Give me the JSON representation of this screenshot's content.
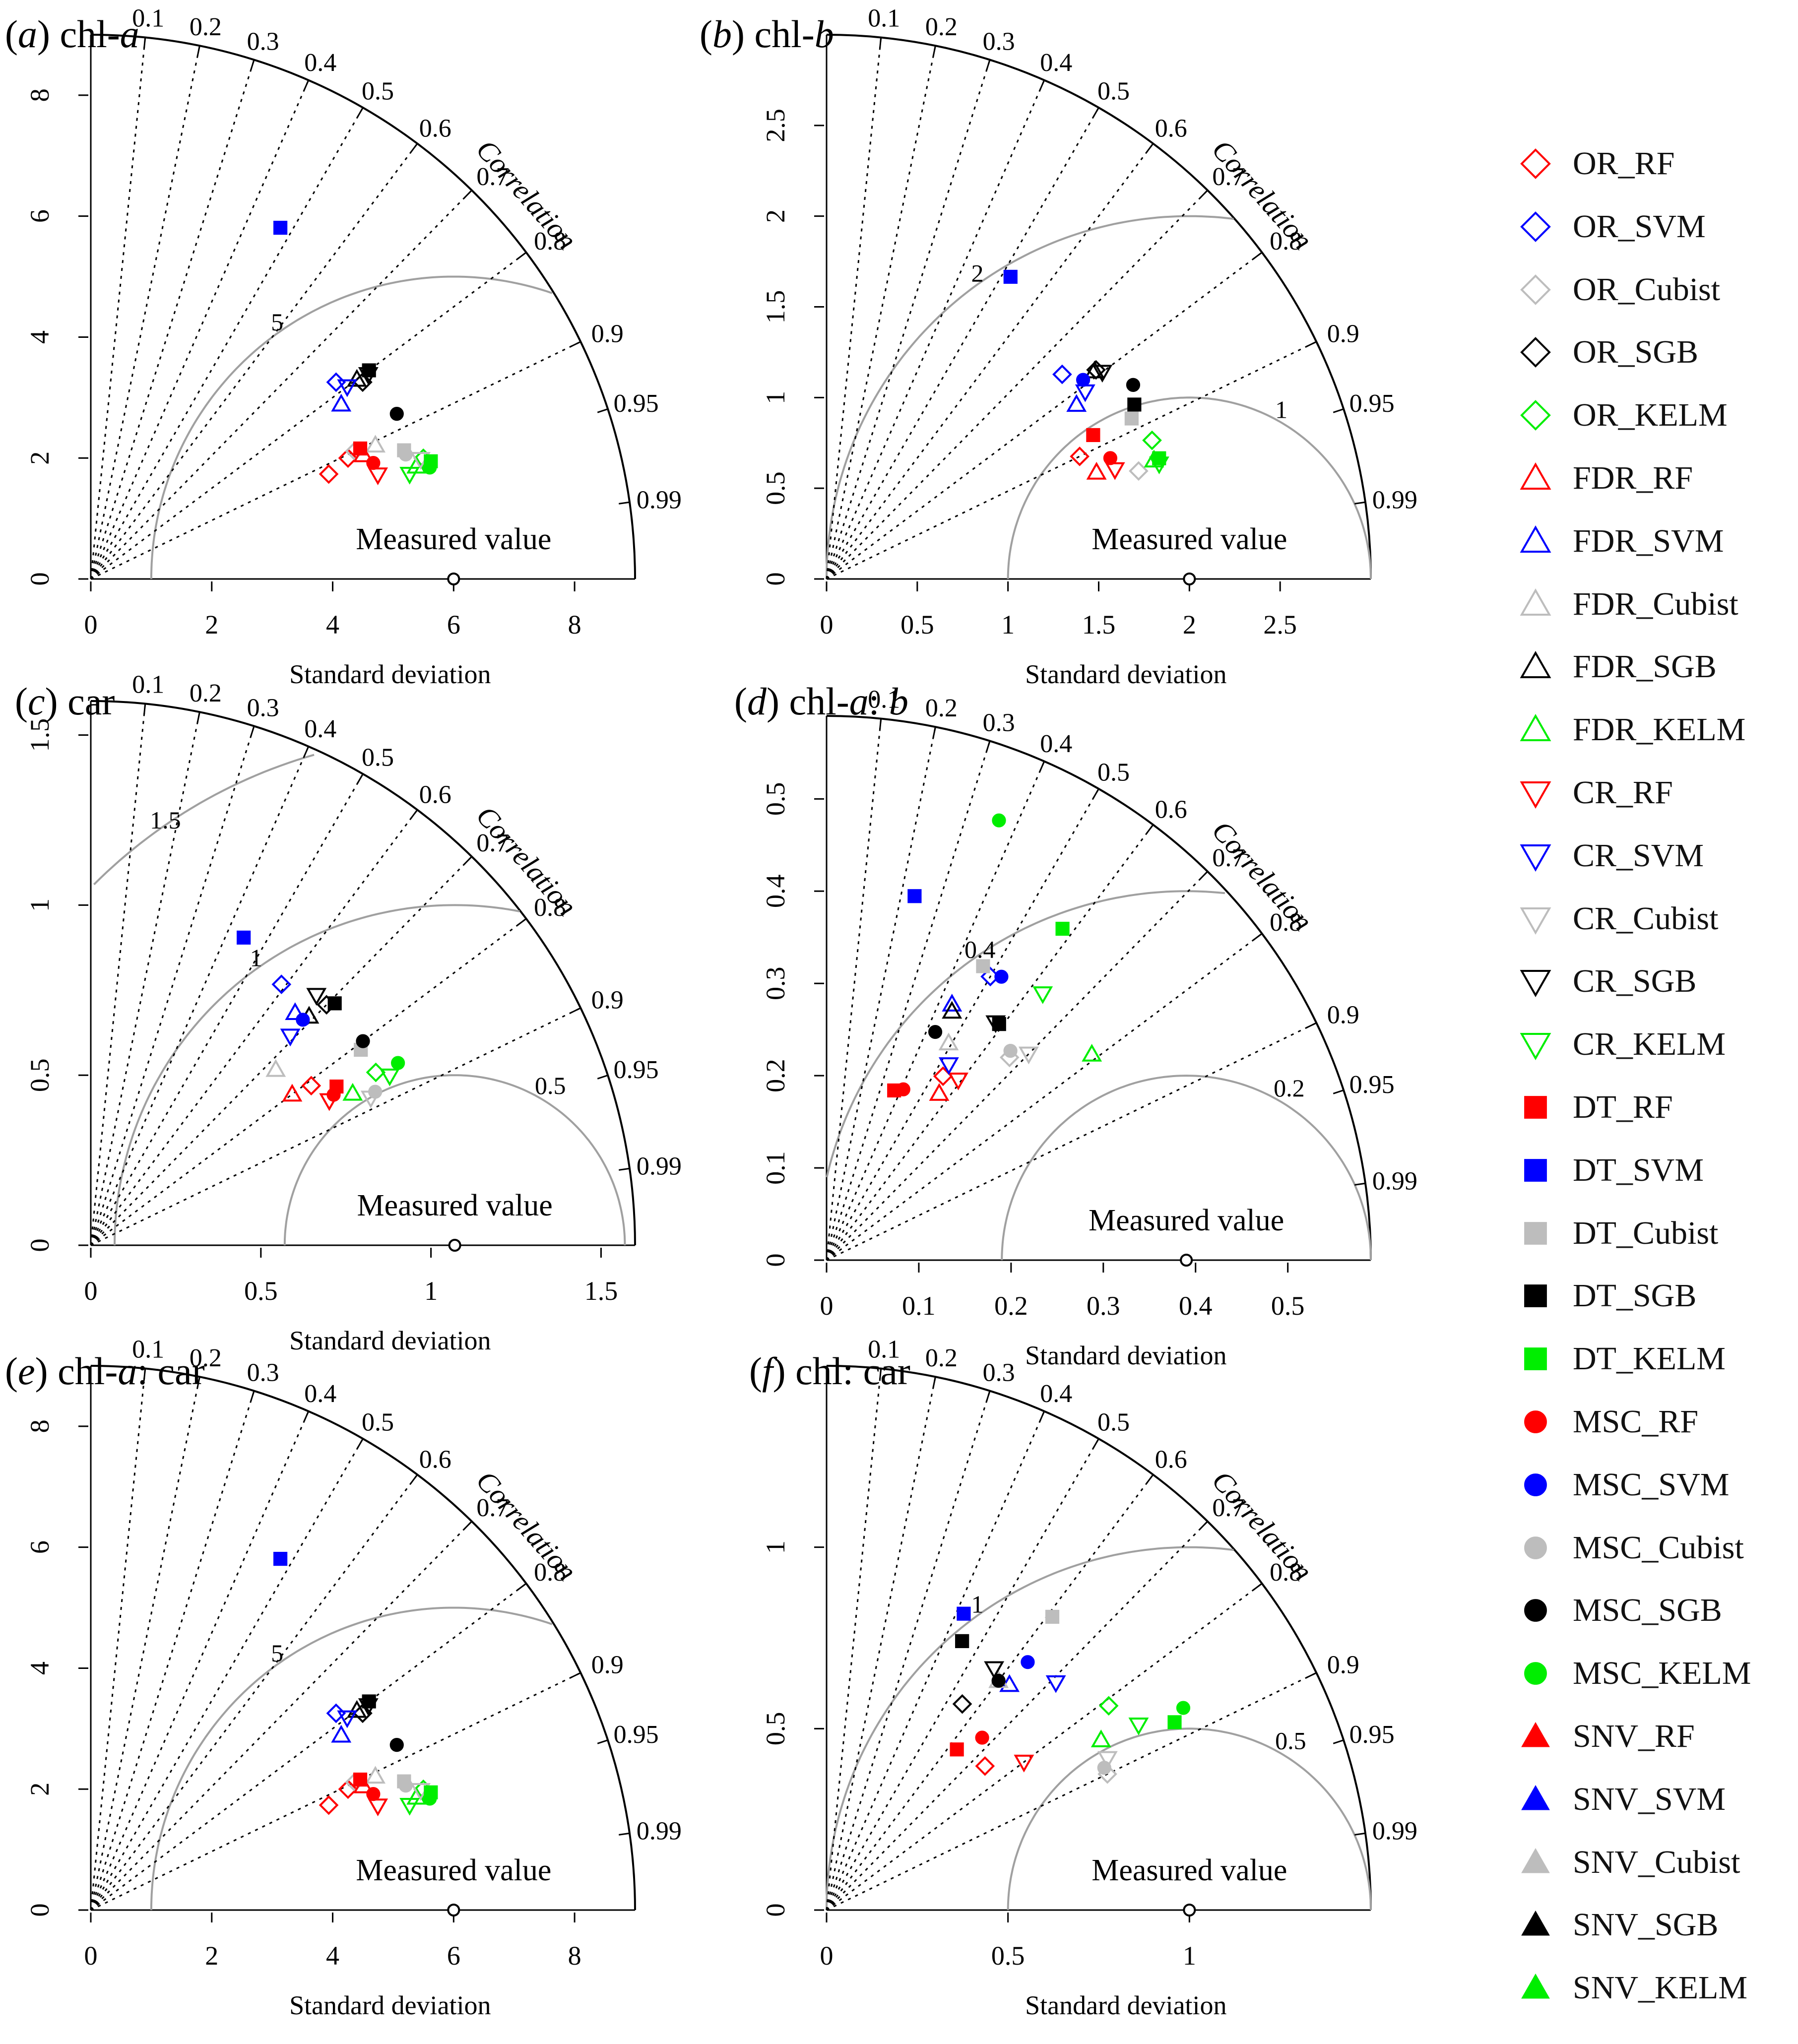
{
  "chart_data": [
    {
      "type": "taylor",
      "panel_letter": "a",
      "title_suffix": "chl-",
      "title_italic": "a",
      "rmax": 9,
      "ref_sd": 6,
      "r_ticks": [
        0,
        2,
        4,
        6,
        8
      ],
      "rmse_arcs": [
        {
          "value": 5,
          "label": "5"
        }
      ],
      "points": [
        {
          "series": "OR_RF",
          "sd": 4.3,
          "corr": 0.915
        },
        {
          "series": "OR_RF",
          "sd": 4.7,
          "corr": 0.905
        },
        {
          "series": "OR_SVM",
          "sd": 5.2,
          "corr": 0.78
        },
        {
          "series": "OR_Cubist",
          "sd": 4.85,
          "corr": 0.9
        },
        {
          "series": "OR_SGB",
          "sd": 5.55,
          "corr": 0.81
        },
        {
          "series": "OR_KELM",
          "sd": 5.85,
          "corr": 0.94
        },
        {
          "series": "FDR_RF",
          "sd": 4.95,
          "corr": 0.91
        },
        {
          "series": "FDR_SVM",
          "sd": 5.05,
          "corr": 0.82
        },
        {
          "series": "FDR_Cubist",
          "sd": 5.2,
          "corr": 0.905
        },
        {
          "series": "FDR_SGB",
          "sd": 5.5,
          "corr": 0.8
        },
        {
          "series": "FDR_KELM",
          "sd": 5.7,
          "corr": 0.945
        },
        {
          "series": "CR_RF",
          "sd": 5.05,
          "corr": 0.94
        },
        {
          "series": "CR_SVM",
          "sd": 5.3,
          "corr": 0.8
        },
        {
          "series": "CR_Cubist",
          "sd": 5.8,
          "corr": 0.94
        },
        {
          "series": "CR_SGB",
          "sd": 5.7,
          "corr": 0.805
        },
        {
          "series": "CR_KELM",
          "sd": 5.55,
          "corr": 0.95
        },
        {
          "series": "DT_RF",
          "sd": 4.95,
          "corr": 0.9
        },
        {
          "series": "DT_SVM",
          "sd": 6.6,
          "corr": 0.475
        },
        {
          "series": "DT_Cubist",
          "sd": 5.6,
          "corr": 0.925
        },
        {
          "series": "DT_SGB",
          "sd": 5.75,
          "corr": 0.8
        },
        {
          "series": "DT_KELM",
          "sd": 5.95,
          "corr": 0.945
        },
        {
          "series": "MSC_RF",
          "sd": 5.05,
          "corr": 0.925
        },
        {
          "series": "MSC_Cubist",
          "sd": 5.6,
          "corr": 0.93
        },
        {
          "series": "MSC_SGB",
          "sd": 5.75,
          "corr": 0.88
        },
        {
          "series": "MSC_KELM",
          "sd": 5.9,
          "corr": 0.95
        }
      ]
    },
    {
      "type": "taylor",
      "panel_letter": "b",
      "title_suffix": "chl-",
      "title_italic": "b",
      "rmax": 3,
      "ref_sd": 2,
      "r_ticks": [
        0.0,
        0.5,
        1.0,
        1.5,
        2.0,
        2.5
      ],
      "rmse_arcs": [
        {
          "value": 1,
          "label": "1"
        },
        {
          "value": 2,
          "label": "2"
        }
      ],
      "points": [
        {
          "series": "OR_RF",
          "sd": 1.55,
          "corr": 0.9
        },
        {
          "series": "OR_SVM",
          "sd": 1.72,
          "corr": 0.755
        },
        {
          "series": "OR_Cubist",
          "sd": 1.82,
          "corr": 0.945
        },
        {
          "series": "OR_SGB",
          "sd": 1.88,
          "corr": 0.79
        },
        {
          "series": "OR_KELM",
          "sd": 1.95,
          "corr": 0.92
        },
        {
          "series": "FDR_RF",
          "sd": 1.6,
          "corr": 0.93
        },
        {
          "series": "FDR_SVM",
          "sd": 1.68,
          "corr": 0.82
        },
        {
          "series": "FDR_SGB",
          "sd": 1.87,
          "corr": 0.79
        },
        {
          "series": "FDR_KELM",
          "sd": 1.92,
          "corr": 0.94
        },
        {
          "series": "CR_RF",
          "sd": 1.7,
          "corr": 0.935
        },
        {
          "series": "CR_SVM",
          "sd": 1.76,
          "corr": 0.81
        },
        {
          "series": "CR_SGB",
          "sd": 1.9,
          "corr": 0.8
        },
        {
          "series": "CR_KELM",
          "sd": 1.94,
          "corr": 0.945
        },
        {
          "series": "DT_RF",
          "sd": 1.67,
          "corr": 0.88
        },
        {
          "series": "DT_SVM",
          "sd": 1.95,
          "corr": 0.52
        },
        {
          "series": "DT_Cubist",
          "sd": 1.9,
          "corr": 0.885
        },
        {
          "series": "DT_SGB",
          "sd": 1.95,
          "corr": 0.87
        },
        {
          "series": "DT_KELM",
          "sd": 1.95,
          "corr": 0.94
        },
        {
          "series": "MSC_RF",
          "sd": 1.7,
          "corr": 0.92
        },
        {
          "series": "MSC_SVM",
          "sd": 1.79,
          "corr": 0.79
        },
        {
          "series": "MSC_SGB",
          "sd": 2.0,
          "corr": 0.845
        }
      ]
    },
    {
      "type": "taylor",
      "panel_letter": "c",
      "title_suffix": "car",
      "title_italic": "",
      "rmax": 1.6,
      "ref_sd": 1.07,
      "r_ticks": [
        0.0,
        0.5,
        1.0,
        1.5
      ],
      "rmse_arcs": [
        {
          "value": 0.5,
          "label": "0.5"
        },
        {
          "value": 1,
          "label": "1"
        },
        {
          "value": 1.5,
          "label": "1.5"
        }
      ],
      "points": [
        {
          "series": "OR_RF",
          "sd": 0.8,
          "corr": 0.81
        },
        {
          "series": "OR_SVM",
          "sd": 0.95,
          "corr": 0.59
        },
        {
          "series": "OR_SGB",
          "sd": 0.99,
          "corr": 0.7
        },
        {
          "series": "OR_KELM",
          "sd": 0.98,
          "corr": 0.855
        },
        {
          "series": "FDR_RF",
          "sd": 0.74,
          "corr": 0.8
        },
        {
          "series": "FDR_SVM",
          "sd": 0.91,
          "corr": 0.66
        },
        {
          "series": "FDR_Cubist",
          "sd": 0.75,
          "corr": 0.725
        },
        {
          "series": "FDR_SGB",
          "sd": 0.93,
          "corr": 0.69
        },
        {
          "series": "FDR_KELM",
          "sd": 0.89,
          "corr": 0.865
        },
        {
          "series": "CR_RF",
          "sd": 0.82,
          "corr": 0.855
        },
        {
          "series": "CR_SVM",
          "sd": 0.85,
          "corr": 0.69
        },
        {
          "series": "CR_Cubist",
          "sd": 0.93,
          "corr": 0.885
        },
        {
          "series": "CR_SGB",
          "sd": 0.99,
          "corr": 0.67
        },
        {
          "series": "CR_KELM",
          "sd": 1.01,
          "corr": 0.87
        },
        {
          "series": "DT_RF",
          "sd": 0.86,
          "corr": 0.84
        },
        {
          "series": "DT_SVM",
          "sd": 1.01,
          "corr": 0.445
        },
        {
          "series": "DT_Cubist",
          "sd": 0.98,
          "corr": 0.81
        },
        {
          "series": "DT_SGB",
          "sd": 1.01,
          "corr": 0.71
        },
        {
          "series": "MSC_RF",
          "sd": 0.84,
          "corr": 0.85
        },
        {
          "series": "MSC_SVM",
          "sd": 0.91,
          "corr": 0.685
        },
        {
          "series": "MSC_Cubist",
          "sd": 0.95,
          "corr": 0.88
        },
        {
          "series": "MSC_SGB",
          "sd": 1.0,
          "corr": 0.8
        },
        {
          "series": "MSC_KELM",
          "sd": 1.05,
          "corr": 0.86
        }
      ]
    },
    {
      "type": "taylor",
      "panel_letter": "d",
      "title_suffix": "chl-",
      "title_italic": "a",
      "title_tail": ": ",
      "title_tail_italic": "b",
      "rmax": 0.59,
      "ref_sd": 0.39,
      "r_ticks": [
        0.0,
        0.1,
        0.2,
        0.3,
        0.4,
        0.5
      ],
      "rmse_arcs": [
        {
          "value": 0.2,
          "label": "0.2"
        },
        {
          "value": 0.4,
          "label": "0.4"
        }
      ],
      "points": [
        {
          "series": "OR_RF",
          "sd": 0.236,
          "corr": 0.535
        },
        {
          "series": "OR_SVM",
          "sd": 0.355,
          "corr": 0.5
        },
        {
          "series": "OR_Cubist",
          "sd": 0.296,
          "corr": 0.67
        },
        {
          "series": "FDR_RF",
          "sd": 0.218,
          "corr": 0.56
        },
        {
          "series": "FDR_SVM",
          "sd": 0.309,
          "corr": 0.44
        },
        {
          "series": "FDR_Cubist",
          "sd": 0.27,
          "corr": 0.49
        },
        {
          "series": "FDR_SGB",
          "sd": 0.302,
          "corr": 0.45
        },
        {
          "series": "FDR_KELM",
          "sd": 0.364,
          "corr": 0.79
        },
        {
          "series": "CR_RF",
          "sd": 0.242,
          "corr": 0.59
        },
        {
          "series": "CR_SVM",
          "sd": 0.25,
          "corr": 0.53
        },
        {
          "series": "CR_Cubist",
          "sd": 0.313,
          "corr": 0.7
        },
        {
          "series": "CR_SGB",
          "sd": 0.316,
          "corr": 0.58
        },
        {
          "series": "CR_KELM",
          "sd": 0.372,
          "corr": 0.63
        },
        {
          "series": "DT_RF",
          "sd": 0.198,
          "corr": 0.37
        },
        {
          "series": "DT_SVM",
          "sd": 0.406,
          "corr": 0.235
        },
        {
          "series": "DT_Cubist",
          "sd": 0.361,
          "corr": 0.47
        },
        {
          "series": "DT_SGB",
          "sd": 0.317,
          "corr": 0.59
        },
        {
          "series": "DT_KELM",
          "sd": 0.441,
          "corr": 0.58
        },
        {
          "series": "MSC_RF",
          "sd": 0.203,
          "corr": 0.41
        },
        {
          "series": "MSC_SVM",
          "sd": 0.361,
          "corr": 0.525
        },
        {
          "series": "MSC_Cubist",
          "sd": 0.302,
          "corr": 0.66
        },
        {
          "series": "MSC_SGB",
          "sd": 0.274,
          "corr": 0.43
        },
        {
          "series": "MSC_KELM",
          "sd": 0.512,
          "corr": 0.365
        }
      ]
    },
    {
      "type": "taylor",
      "panel_letter": "e",
      "title_suffix": "chl-",
      "title_italic": "a",
      "title_tail": ": car",
      "title_tail_italic": "",
      "rmax": 9,
      "ref_sd": 6,
      "r_ticks": [
        0,
        2,
        4,
        6,
        8
      ],
      "rmse_arcs": [
        {
          "value": 5,
          "label": "5"
        }
      ],
      "points": [
        {
          "series": "OR_RF",
          "sd": 4.3,
          "corr": 0.915
        },
        {
          "series": "OR_RF",
          "sd": 4.7,
          "corr": 0.905
        },
        {
          "series": "OR_SVM",
          "sd": 5.2,
          "corr": 0.78
        },
        {
          "series": "OR_Cubist",
          "sd": 4.85,
          "corr": 0.9
        },
        {
          "series": "OR_SGB",
          "sd": 5.55,
          "corr": 0.81
        },
        {
          "series": "OR_KELM",
          "sd": 5.85,
          "corr": 0.94
        },
        {
          "series": "FDR_RF",
          "sd": 4.95,
          "corr": 0.91
        },
        {
          "series": "FDR_SVM",
          "sd": 5.05,
          "corr": 0.82
        },
        {
          "series": "FDR_Cubist",
          "sd": 5.2,
          "corr": 0.905
        },
        {
          "series": "FDR_SGB",
          "sd": 5.5,
          "corr": 0.8
        },
        {
          "series": "FDR_KELM",
          "sd": 5.7,
          "corr": 0.945
        },
        {
          "series": "CR_RF",
          "sd": 5.05,
          "corr": 0.94
        },
        {
          "series": "CR_SVM",
          "sd": 5.3,
          "corr": 0.8
        },
        {
          "series": "CR_Cubist",
          "sd": 5.8,
          "corr": 0.94
        },
        {
          "series": "CR_SGB",
          "sd": 5.7,
          "corr": 0.805
        },
        {
          "series": "CR_KELM",
          "sd": 5.55,
          "corr": 0.95
        },
        {
          "series": "DT_RF",
          "sd": 4.95,
          "corr": 0.9
        },
        {
          "series": "DT_SVM",
          "sd": 6.6,
          "corr": 0.475
        },
        {
          "series": "DT_Cubist",
          "sd": 5.6,
          "corr": 0.925
        },
        {
          "series": "DT_SGB",
          "sd": 5.75,
          "corr": 0.8
        },
        {
          "series": "DT_KELM",
          "sd": 5.95,
          "corr": 0.945
        },
        {
          "series": "MSC_RF",
          "sd": 5.05,
          "corr": 0.925
        },
        {
          "series": "MSC_Cubist",
          "sd": 5.6,
          "corr": 0.93
        },
        {
          "series": "MSC_SGB",
          "sd": 5.75,
          "corr": 0.88
        },
        {
          "series": "MSC_KELM",
          "sd": 5.9,
          "corr": 0.95
        }
      ]
    },
    {
      "type": "taylor",
      "panel_letter": "f",
      "title_suffix": "chl: car",
      "title_italic": "",
      "rmax": 1.5,
      "ref_sd": 1.0,
      "r_ticks": [
        0.0,
        0.5,
        1.0
      ],
      "rmse_arcs": [
        {
          "value": 0.5,
          "label": "0.5"
        },
        {
          "value": 1,
          "label": "1"
        }
      ],
      "points": [
        {
          "series": "OR_RF",
          "sd": 0.59,
          "corr": 0.74
        },
        {
          "series": "OR_SGB",
          "sd": 0.68,
          "corr": 0.55
        },
        {
          "series": "OR_Cubist",
          "sd": 0.86,
          "corr": 0.9
        },
        {
          "series": "OR_KELM",
          "sd": 0.96,
          "corr": 0.81
        },
        {
          "series": "FDR_SVM",
          "sd": 0.8,
          "corr": 0.63
        },
        {
          "series": "FDR_Cubist",
          "sd": 0.79,
          "corr": 0.6
        },
        {
          "series": "FDR_KELM",
          "sd": 0.89,
          "corr": 0.85
        },
        {
          "series": "CR_RF",
          "sd": 0.68,
          "corr": 0.8
        },
        {
          "series": "CR_SVM",
          "sd": 0.89,
          "corr": 0.71
        },
        {
          "series": "CR_Cubist",
          "sd": 0.88,
          "corr": 0.88
        },
        {
          "series": "CR_SGB",
          "sd": 0.81,
          "corr": 0.57
        },
        {
          "series": "CR_KELM",
          "sd": 1.0,
          "corr": 0.86
        },
        {
          "series": "DT_RF",
          "sd": 0.57,
          "corr": 0.63
        },
        {
          "series": "DT_SVM",
          "sd": 0.9,
          "corr": 0.42
        },
        {
          "series": "DT_Cubist",
          "sd": 1.02,
          "corr": 0.61
        },
        {
          "series": "DT_SGB",
          "sd": 0.83,
          "corr": 0.45
        },
        {
          "series": "DT_KELM",
          "sd": 1.09,
          "corr": 0.88
        },
        {
          "series": "MSC_RF",
          "sd": 0.64,
          "corr": 0.67
        },
        {
          "series": "MSC_SVM",
          "sd": 0.88,
          "corr": 0.63
        },
        {
          "series": "MSC_Cubist",
          "sd": 0.86,
          "corr": 0.89
        },
        {
          "series": "MSC_SGB",
          "sd": 0.79,
          "corr": 0.6
        },
        {
          "series": "MSC_KELM",
          "sd": 1.13,
          "corr": 0.87
        }
      ]
    }
  ],
  "axis": {
    "x_label": "Standard deviation",
    "corr_label": "Correlation",
    "ref_label": "Measured value",
    "corr_ticks": [
      "0.1",
      "0.2",
      "0.3",
      "0.4",
      "0.5",
      "0.6",
      "0.7",
      "0.8",
      "0.9",
      "0.95",
      "0.99"
    ]
  },
  "legend": [
    {
      "label": "OR_RF",
      "color": "#ff0000",
      "shape": "diamond-open"
    },
    {
      "label": "OR_SVM",
      "color": "#0000ff",
      "shape": "diamond-open"
    },
    {
      "label": "OR_Cubist",
      "color": "#bdbdbd",
      "shape": "diamond-open"
    },
    {
      "label": "OR_SGB",
      "color": "#000000",
      "shape": "diamond-open"
    },
    {
      "label": "OR_KELM",
      "color": "#00ee00",
      "shape": "diamond-open"
    },
    {
      "label": "FDR_RF",
      "color": "#ff0000",
      "shape": "triangle-open"
    },
    {
      "label": "FDR_SVM",
      "color": "#0000ff",
      "shape": "triangle-open"
    },
    {
      "label": "FDR_Cubist",
      "color": "#bdbdbd",
      "shape": "triangle-open"
    },
    {
      "label": "FDR_SGB",
      "color": "#000000",
      "shape": "triangle-open"
    },
    {
      "label": "FDR_KELM",
      "color": "#00ee00",
      "shape": "triangle-open"
    },
    {
      "label": "CR_RF",
      "color": "#ff0000",
      "shape": "tridown-open"
    },
    {
      "label": "CR_SVM",
      "color": "#0000ff",
      "shape": "tridown-open"
    },
    {
      "label": "CR_Cubist",
      "color": "#bdbdbd",
      "shape": "tridown-open"
    },
    {
      "label": "CR_SGB",
      "color": "#000000",
      "shape": "tridown-open"
    },
    {
      "label": "CR_KELM",
      "color": "#00ee00",
      "shape": "tridown-open"
    },
    {
      "label": "DT_RF",
      "color": "#ff0000",
      "shape": "square"
    },
    {
      "label": "DT_SVM",
      "color": "#0000ff",
      "shape": "square"
    },
    {
      "label": "DT_Cubist",
      "color": "#bdbdbd",
      "shape": "square"
    },
    {
      "label": "DT_SGB",
      "color": "#000000",
      "shape": "square"
    },
    {
      "label": "DT_KELM",
      "color": "#00ee00",
      "shape": "square"
    },
    {
      "label": "MSC_RF",
      "color": "#ff0000",
      "shape": "circle"
    },
    {
      "label": "MSC_SVM",
      "color": "#0000ff",
      "shape": "circle"
    },
    {
      "label": "MSC_Cubist",
      "color": "#bdbdbd",
      "shape": "circle"
    },
    {
      "label": "MSC_SGB",
      "color": "#000000",
      "shape": "circle"
    },
    {
      "label": "MSC_KELM",
      "color": "#00ee00",
      "shape": "circle"
    },
    {
      "label": "SNV_RF",
      "color": "#ff0000",
      "shape": "triangle"
    },
    {
      "label": "SNV_SVM",
      "color": "#0000ff",
      "shape": "triangle"
    },
    {
      "label": "SNV_Cubist",
      "color": "#bdbdbd",
      "shape": "triangle"
    },
    {
      "label": "SNV_SGB",
      "color": "#000000",
      "shape": "triangle"
    },
    {
      "label": "SNV_KELM",
      "color": "#00ee00",
      "shape": "triangle"
    }
  ]
}
